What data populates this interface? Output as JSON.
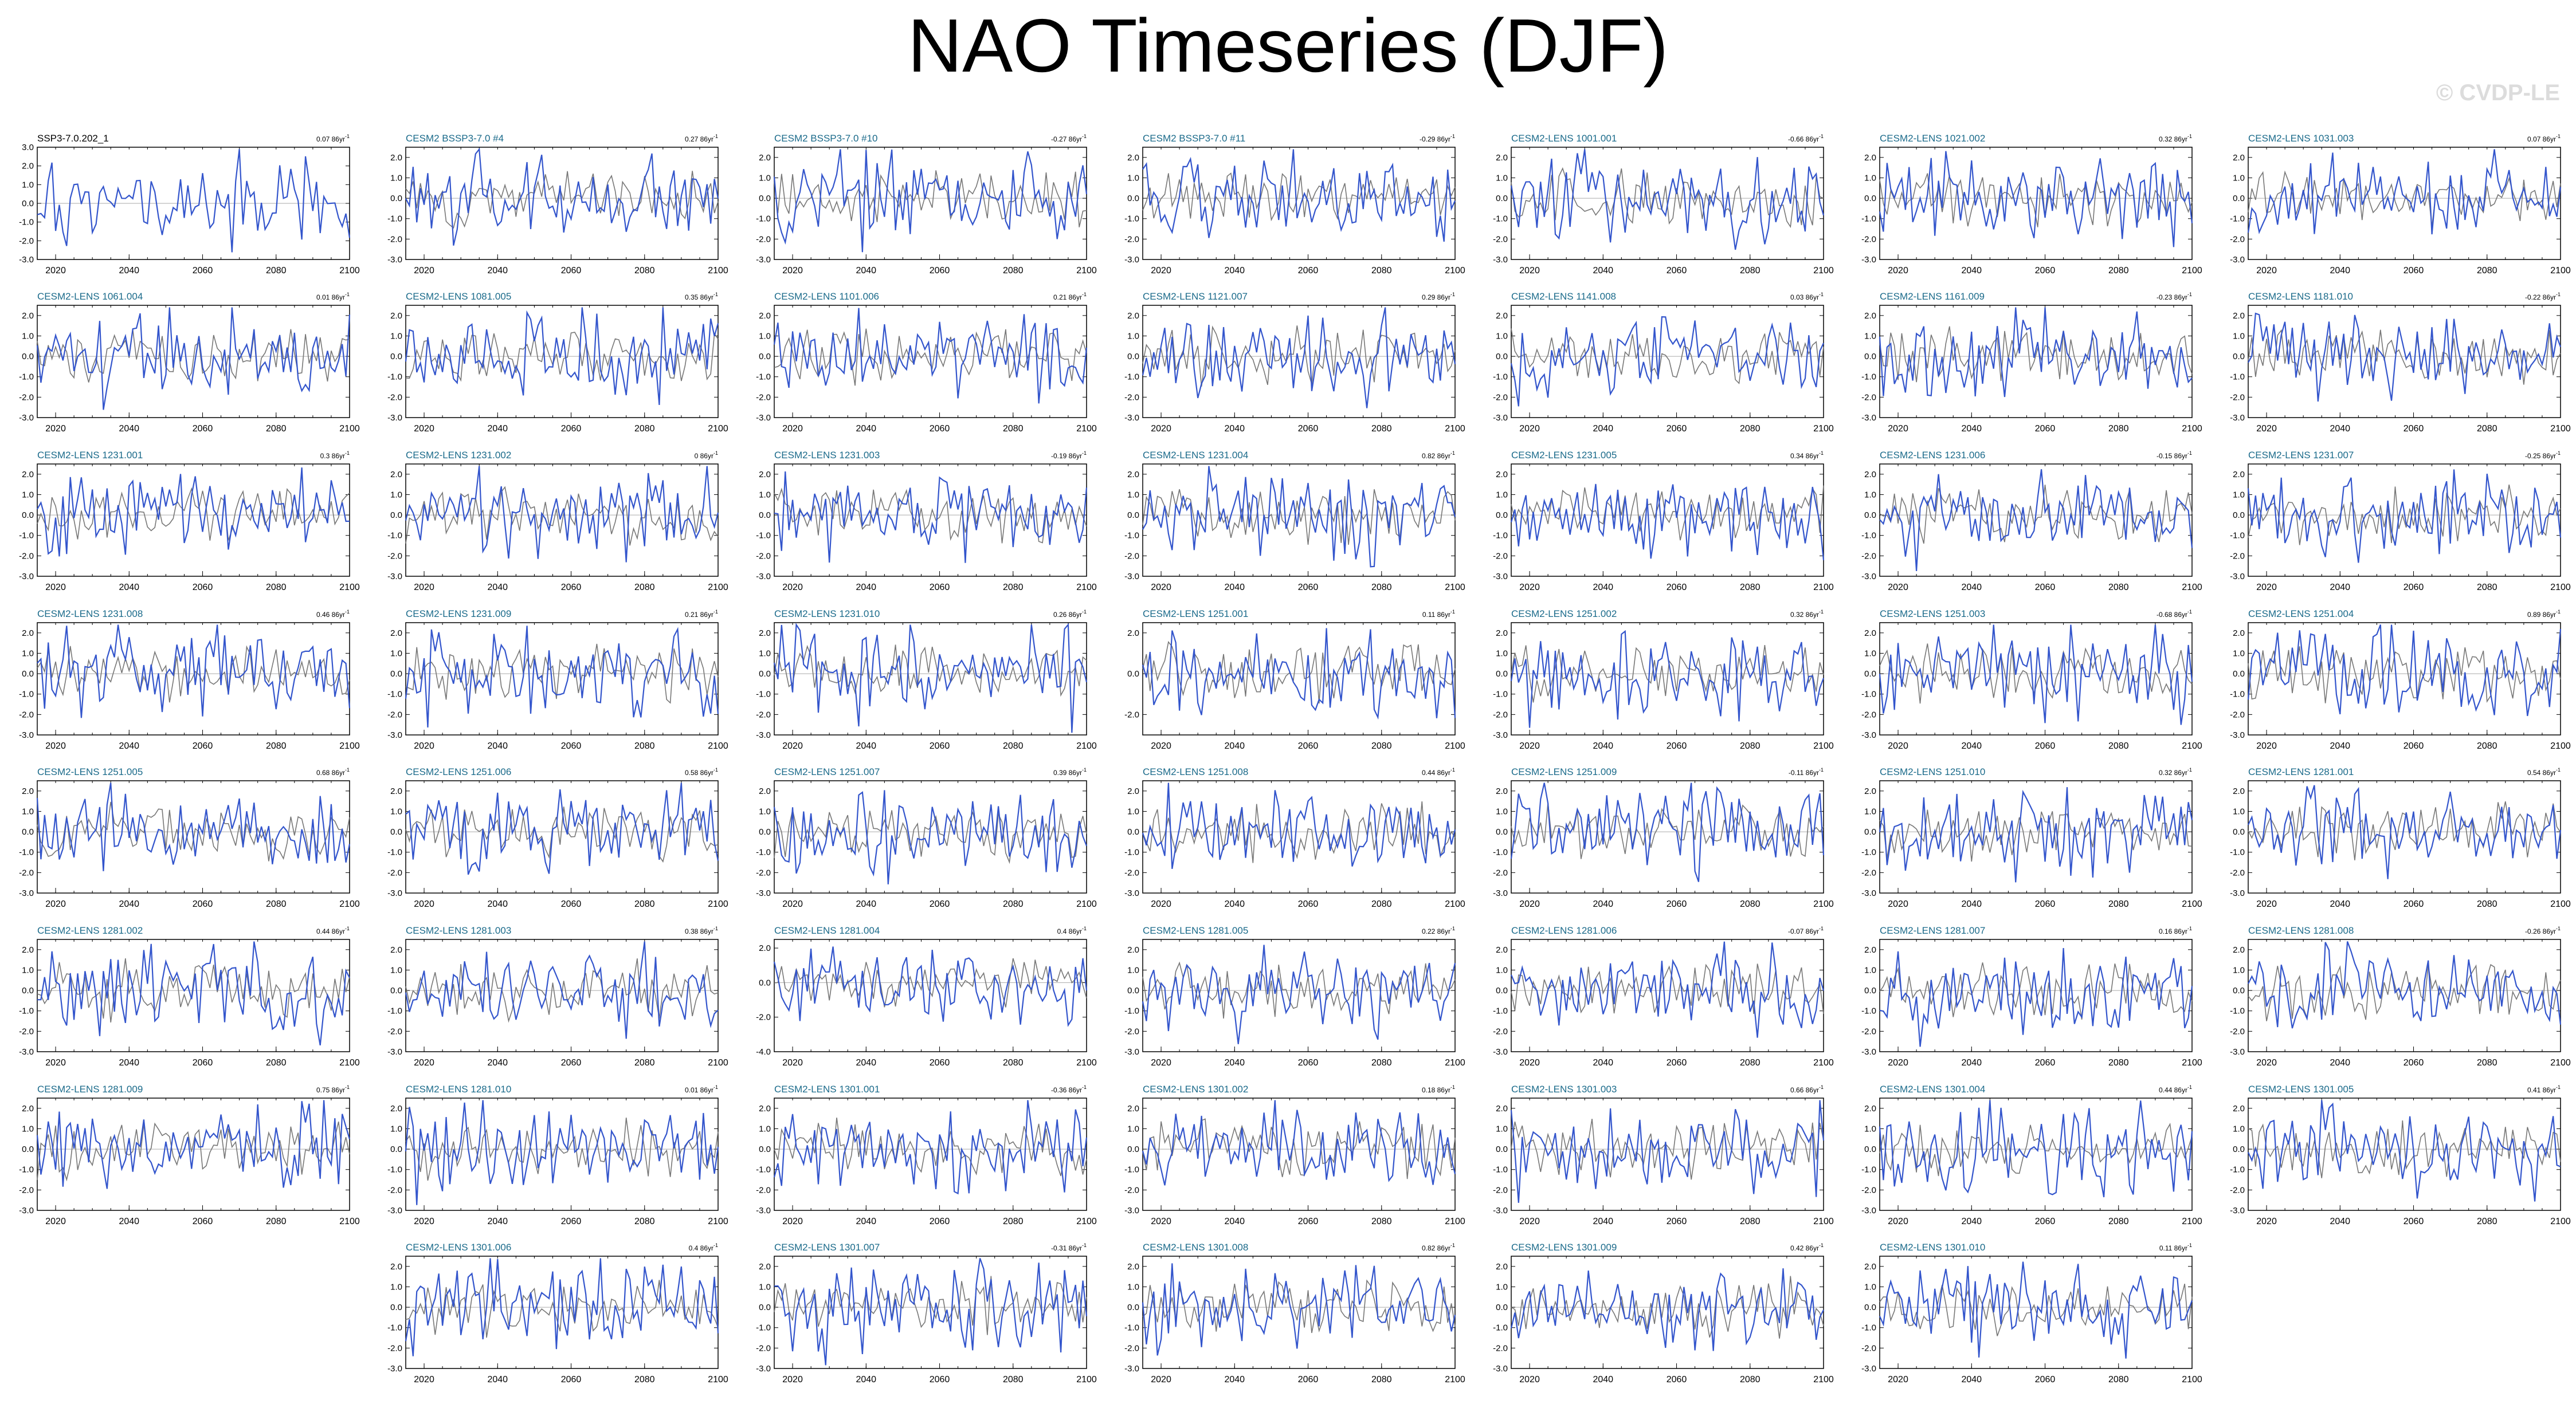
{
  "title": "NAO Timeseries (DJF)",
  "credit": "© CVDP-LE",
  "colors": {
    "ensemble": "#3355cc",
    "mean": "#777777",
    "zero": "#aaaaaa",
    "title_first": "#000000",
    "title_member": "#1a6a8a"
  },
  "xticks": [
    2020,
    2040,
    2060,
    2080,
    2100
  ],
  "chart_data": [
    {
      "type": "line",
      "name": "SSP3-7.0.202_1",
      "trend": "0.07 86yr",
      "yticks": [
        "3.0",
        "2.0",
        "1.0",
        "0.0",
        "-1.0",
        "-2.0",
        "-3.0"
      ],
      "ylim": [
        -3.0,
        3.0
      ],
      "x_range": [
        2015,
        2100
      ],
      "seed": 1
    },
    {
      "type": "line",
      "name": "CESM2 BSSP3-7.0 #4",
      "trend": "0.27 86yr",
      "yticks": [
        "2.0",
        "1.0",
        "0.0",
        "-1.0",
        "-2.0",
        "-3.0"
      ],
      "ylim": [
        -3.0,
        2.5
      ],
      "x_range": [
        2015,
        2100
      ],
      "seed": 2
    },
    {
      "type": "line",
      "name": "CESM2 BSSP3-7.0 #10",
      "trend": "-0.27 86yr",
      "yticks": [
        "2.0",
        "1.0",
        "0.0",
        "-1.0",
        "-2.0",
        "-3.0"
      ],
      "ylim": [
        -3.0,
        2.5
      ],
      "x_range": [
        2015,
        2100
      ],
      "seed": 3
    },
    {
      "type": "line",
      "name": "CESM2 BSSP3-7.0 #11",
      "trend": "-0.29 86yr",
      "yticks": [
        "2.0",
        "1.0",
        "0.0",
        "-1.0",
        "-2.0",
        "-3.0"
      ],
      "ylim": [
        -3.0,
        2.5
      ],
      "x_range": [
        2015,
        2100
      ],
      "seed": 4
    },
    {
      "type": "line",
      "name": "CESM2-LENS 1001.001",
      "trend": "-0.66 86yr",
      "yticks": [
        "2.0",
        "1.0",
        "0.0",
        "-1.0",
        "-2.0",
        "-3.0"
      ],
      "ylim": [
        -3.0,
        2.5
      ],
      "x_range": [
        2015,
        2100
      ],
      "seed": 5
    },
    {
      "type": "line",
      "name": "CESM2-LENS 1021.002",
      "trend": "0.32 86yr",
      "yticks": [
        "2.0",
        "1.0",
        "0.0",
        "-1.0",
        "-2.0",
        "-3.0"
      ],
      "ylim": [
        -3.0,
        2.5
      ],
      "x_range": [
        2015,
        2100
      ],
      "seed": 6
    },
    {
      "type": "line",
      "name": "CESM2-LENS 1031.003",
      "trend": "0.07 86yr",
      "yticks": [
        "2.0",
        "1.0",
        "0.0",
        "-1.0",
        "-2.0",
        "-3.0"
      ],
      "ylim": [
        -3.0,
        2.5
      ],
      "x_range": [
        2015,
        2100
      ],
      "seed": 7
    },
    {
      "type": "line",
      "name": "CESM2-LENS 1061.004",
      "trend": "0.01 86yr",
      "yticks": [
        "2.0",
        "1.0",
        "0.0",
        "-1.0",
        "-2.0",
        "-3.0"
      ],
      "ylim": [
        -3.0,
        2.5
      ],
      "x_range": [
        2015,
        2100
      ],
      "seed": 8
    },
    {
      "type": "line",
      "name": "CESM2-LENS 1081.005",
      "trend": "0.35 86yr",
      "yticks": [
        "2.0",
        "1.0",
        "0.0",
        "-1.0",
        "-2.0",
        "-3.0"
      ],
      "ylim": [
        -3.0,
        2.5
      ],
      "x_range": [
        2015,
        2100
      ],
      "seed": 9
    },
    {
      "type": "line",
      "name": "CESM2-LENS 1101.006",
      "trend": "0.21 86yr",
      "yticks": [
        "2.0",
        "1.0",
        "0.0",
        "-1.0",
        "-2.0",
        "-3.0"
      ],
      "ylim": [
        -3.0,
        2.5
      ],
      "x_range": [
        2015,
        2100
      ],
      "seed": 10
    },
    {
      "type": "line",
      "name": "CESM2-LENS 1121.007",
      "trend": "0.29 86yr",
      "yticks": [
        "2.0",
        "1.0",
        "0.0",
        "-1.0",
        "-2.0",
        "-3.0"
      ],
      "ylim": [
        -3.0,
        2.5
      ],
      "x_range": [
        2015,
        2100
      ],
      "seed": 11
    },
    {
      "type": "line",
      "name": "CESM2-LENS 1141.008",
      "trend": "0.03 86yr",
      "yticks": [
        "2.0",
        "1.0",
        "0.0",
        "-1.0",
        "-2.0",
        "-3.0"
      ],
      "ylim": [
        -3.0,
        2.5
      ],
      "x_range": [
        2015,
        2100
      ],
      "seed": 12
    },
    {
      "type": "line",
      "name": "CESM2-LENS 1161.009",
      "trend": "-0.23 86yr",
      "yticks": [
        "2.0",
        "1.0",
        "0.0",
        "-1.0",
        "-2.0",
        "-3.0"
      ],
      "ylim": [
        -3.0,
        2.5
      ],
      "x_range": [
        2015,
        2100
      ],
      "seed": 13
    },
    {
      "type": "line",
      "name": "CESM2-LENS 1181.010",
      "trend": "-0.22 86yr",
      "yticks": [
        "2.0",
        "1.0",
        "0.0",
        "-1.0",
        "-2.0",
        "-3.0"
      ],
      "ylim": [
        -3.0,
        2.5
      ],
      "x_range": [
        2015,
        2100
      ],
      "seed": 14
    },
    {
      "type": "line",
      "name": "CESM2-LENS 1231.001",
      "trend": "0.3 86yr",
      "yticks": [
        "2.0",
        "1.0",
        "0.0",
        "-1.0",
        "-2.0",
        "-3.0"
      ],
      "ylim": [
        -3.0,
        2.5
      ],
      "x_range": [
        2015,
        2100
      ],
      "seed": 15
    },
    {
      "type": "line",
      "name": "CESM2-LENS 1231.002",
      "trend": "0 86yr",
      "yticks": [
        "2.0",
        "1.0",
        "0.0",
        "-1.0",
        "-2.0",
        "-3.0"
      ],
      "ylim": [
        -3.0,
        2.5
      ],
      "x_range": [
        2015,
        2100
      ],
      "seed": 16
    },
    {
      "type": "line",
      "name": "CESM2-LENS 1231.003",
      "trend": "-0.19 86yr",
      "yticks": [
        "2.0",
        "1.0",
        "0.0",
        "-1.0",
        "-2.0",
        "-3.0"
      ],
      "ylim": [
        -3.0,
        2.5
      ],
      "x_range": [
        2015,
        2100
      ],
      "seed": 17
    },
    {
      "type": "line",
      "name": "CESM2-LENS 1231.004",
      "trend": "0.82 86yr",
      "yticks": [
        "2.0",
        "1.0",
        "0.0",
        "-1.0",
        "-2.0",
        "-3.0"
      ],
      "ylim": [
        -3.0,
        2.5
      ],
      "x_range": [
        2015,
        2100
      ],
      "seed": 18
    },
    {
      "type": "line",
      "name": "CESM2-LENS 1231.005",
      "trend": "0.34 86yr",
      "yticks": [
        "2.0",
        "1.0",
        "0.0",
        "-1.0",
        "-2.0",
        "-3.0"
      ],
      "ylim": [
        -3.0,
        2.5
      ],
      "x_range": [
        2015,
        2100
      ],
      "seed": 19
    },
    {
      "type": "line",
      "name": "CESM2-LENS 1231.006",
      "trend": "-0.15 86yr",
      "yticks": [
        "2.0",
        "1.0",
        "0.0",
        "-1.0",
        "-2.0",
        "-3.0"
      ],
      "ylim": [
        -3.0,
        2.5
      ],
      "x_range": [
        2015,
        2100
      ],
      "seed": 20
    },
    {
      "type": "line",
      "name": "CESM2-LENS 1231.007",
      "trend": "-0.25 86yr",
      "yticks": [
        "2.0",
        "1.0",
        "0.0",
        "-1.0",
        "-2.0",
        "-3.0"
      ],
      "ylim": [
        -3.0,
        2.5
      ],
      "x_range": [
        2015,
        2100
      ],
      "seed": 21
    },
    {
      "type": "line",
      "name": "CESM2-LENS 1231.008",
      "trend": "0.46 86yr",
      "yticks": [
        "2.0",
        "1.0",
        "0.0",
        "-1.0",
        "-2.0",
        "-3.0"
      ],
      "ylim": [
        -3.0,
        2.5
      ],
      "x_range": [
        2015,
        2100
      ],
      "seed": 22
    },
    {
      "type": "line",
      "name": "CESM2-LENS 1231.009",
      "trend": "0.21 86yr",
      "yticks": [
        "2.0",
        "1.0",
        "0.0",
        "-1.0",
        "-2.0",
        "-3.0"
      ],
      "ylim": [
        -3.0,
        2.5
      ],
      "x_range": [
        2015,
        2100
      ],
      "seed": 23
    },
    {
      "type": "line",
      "name": "CESM2-LENS 1231.010",
      "trend": "0.26 86yr",
      "yticks": [
        "2.0",
        "1.0",
        "0.0",
        "-1.0",
        "-2.0",
        "-3.0"
      ],
      "ylim": [
        -3.0,
        2.5
      ],
      "x_range": [
        2015,
        2100
      ],
      "seed": 24
    },
    {
      "type": "line",
      "name": "CESM2-LENS 1251.001",
      "trend": "0.11 86yr",
      "yticks": [
        "2.0",
        "0.0",
        "-2.0"
      ],
      "ylim": [
        -3.0,
        2.5
      ],
      "x_range": [
        2015,
        2100
      ],
      "seed": 25
    },
    {
      "type": "line",
      "name": "CESM2-LENS 1251.002",
      "trend": "0.32 86yr",
      "yticks": [
        "2.0",
        "1.0",
        "0.0",
        "-1.0",
        "-2.0",
        "-3.0"
      ],
      "ylim": [
        -3.0,
        2.5
      ],
      "x_range": [
        2015,
        2100
      ],
      "seed": 26
    },
    {
      "type": "line",
      "name": "CESM2-LENS 1251.003",
      "trend": "-0.68 86yr",
      "yticks": [
        "2.0",
        "1.0",
        "0.0",
        "-1.0",
        "-2.0",
        "-3.0"
      ],
      "ylim": [
        -3.0,
        2.5
      ],
      "x_range": [
        2015,
        2100
      ],
      "seed": 27
    },
    {
      "type": "line",
      "name": "CESM2-LENS 1251.004",
      "trend": "0.89 86yr",
      "yticks": [
        "2.0",
        "1.0",
        "0.0",
        "-1.0",
        "-2.0",
        "-3.0"
      ],
      "ylim": [
        -3.0,
        2.5
      ],
      "x_range": [
        2015,
        2100
      ],
      "seed": 28
    },
    {
      "type": "line",
      "name": "CESM2-LENS 1251.005",
      "trend": "0.68 86yr",
      "yticks": [
        "2.0",
        "1.0",
        "0.0",
        "-1.0",
        "-2.0",
        "-3.0"
      ],
      "ylim": [
        -3.0,
        2.5
      ],
      "x_range": [
        2015,
        2100
      ],
      "seed": 29
    },
    {
      "type": "line",
      "name": "CESM2-LENS 1251.006",
      "trend": "0.58 86yr",
      "yticks": [
        "2.0",
        "1.0",
        "0.0",
        "-1.0",
        "-2.0",
        "-3.0"
      ],
      "ylim": [
        -3.0,
        2.5
      ],
      "x_range": [
        2015,
        2100
      ],
      "seed": 30
    },
    {
      "type": "line",
      "name": "CESM2-LENS 1251.007",
      "trend": "0.39 86yr",
      "yticks": [
        "2.0",
        "1.0",
        "0.0",
        "-1.0",
        "-2.0",
        "-3.0"
      ],
      "ylim": [
        -3.0,
        2.5
      ],
      "x_range": [
        2015,
        2100
      ],
      "seed": 31
    },
    {
      "type": "line",
      "name": "CESM2-LENS 1251.008",
      "trend": "0.44 86yr",
      "yticks": [
        "2.0",
        "1.0",
        "0.0",
        "-1.0",
        "-2.0",
        "-3.0"
      ],
      "ylim": [
        -3.0,
        2.5
      ],
      "x_range": [
        2015,
        2100
      ],
      "seed": 32
    },
    {
      "type": "line",
      "name": "CESM2-LENS 1251.009",
      "trend": "-0.11 86yr",
      "yticks": [
        "2.0",
        "1.0",
        "0.0",
        "-1.0",
        "-2.0",
        "-3.0"
      ],
      "ylim": [
        -3.0,
        2.5
      ],
      "x_range": [
        2015,
        2100
      ],
      "seed": 33
    },
    {
      "type": "line",
      "name": "CESM2-LENS 1251.010",
      "trend": "0.32 86yr",
      "yticks": [
        "2.0",
        "1.0",
        "0.0",
        "-1.0",
        "-2.0",
        "-3.0"
      ],
      "ylim": [
        -3.0,
        2.5
      ],
      "x_range": [
        2015,
        2100
      ],
      "seed": 34
    },
    {
      "type": "line",
      "name": "CESM2-LENS 1281.001",
      "trend": "0.54 86yr",
      "yticks": [
        "2.0",
        "1.0",
        "0.0",
        "-1.0",
        "-2.0",
        "-3.0"
      ],
      "ylim": [
        -3.0,
        2.5
      ],
      "x_range": [
        2015,
        2100
      ],
      "seed": 35
    },
    {
      "type": "line",
      "name": "CESM2-LENS 1281.002",
      "trend": "0.44 86yr",
      "yticks": [
        "2.0",
        "1.0",
        "0.0",
        "-1.0",
        "-2.0",
        "-3.0"
      ],
      "ylim": [
        -3.0,
        2.5
      ],
      "x_range": [
        2015,
        2100
      ],
      "seed": 36
    },
    {
      "type": "line",
      "name": "CESM2-LENS 1281.003",
      "trend": "0.38 86yr",
      "yticks": [
        "2.0",
        "1.0",
        "0.0",
        "-1.0",
        "-2.0",
        "-3.0"
      ],
      "ylim": [
        -3.0,
        2.5
      ],
      "x_range": [
        2015,
        2100
      ],
      "seed": 37
    },
    {
      "type": "line",
      "name": "CESM2-LENS 1281.004",
      "trend": "0.4 86yr",
      "yticks": [
        "2.0",
        "0.0",
        "-2.0",
        "-4.0"
      ],
      "ylim": [
        -4.0,
        2.5
      ],
      "x_range": [
        2015,
        2100
      ],
      "seed": 38
    },
    {
      "type": "line",
      "name": "CESM2-LENS 1281.005",
      "trend": "0.22 86yr",
      "yticks": [
        "2.0",
        "1.0",
        "0.0",
        "-1.0",
        "-2.0",
        "-3.0"
      ],
      "ylim": [
        -3.0,
        2.5
      ],
      "x_range": [
        2015,
        2100
      ],
      "seed": 39
    },
    {
      "type": "line",
      "name": "CESM2-LENS 1281.006",
      "trend": "-0.07 86yr",
      "yticks": [
        "2.0",
        "1.0",
        "0.0",
        "-1.0",
        "-2.0",
        "-3.0"
      ],
      "ylim": [
        -3.0,
        2.5
      ],
      "x_range": [
        2015,
        2100
      ],
      "seed": 40
    },
    {
      "type": "line",
      "name": "CESM2-LENS 1281.007",
      "trend": "0.16 86yr",
      "yticks": [
        "2.0",
        "1.0",
        "0.0",
        "-1.0",
        "-2.0",
        "-3.0"
      ],
      "ylim": [
        -3.0,
        2.5
      ],
      "x_range": [
        2015,
        2100
      ],
      "seed": 41
    },
    {
      "type": "line",
      "name": "CESM2-LENS 1281.008",
      "trend": "-0.26 86yr",
      "yticks": [
        "2.0",
        "1.0",
        "0.0",
        "-1.0",
        "-2.0",
        "-3.0"
      ],
      "ylim": [
        -3.0,
        2.5
      ],
      "x_range": [
        2015,
        2100
      ],
      "seed": 42
    },
    {
      "type": "line",
      "name": "CESM2-LENS 1281.009",
      "trend": "0.75 86yr",
      "yticks": [
        "2.0",
        "1.0",
        "0.0",
        "-1.0",
        "-2.0",
        "-3.0"
      ],
      "ylim": [
        -3.0,
        2.5
      ],
      "x_range": [
        2015,
        2100
      ],
      "seed": 43
    },
    {
      "type": "line",
      "name": "CESM2-LENS 1281.010",
      "trend": "0.01 86yr",
      "yticks": [
        "2.0",
        "1.0",
        "0.0",
        "-1.0",
        "-2.0",
        "-3.0"
      ],
      "ylim": [
        -3.0,
        2.5
      ],
      "x_range": [
        2015,
        2100
      ],
      "seed": 44
    },
    {
      "type": "line",
      "name": "CESM2-LENS 1301.001",
      "trend": "-0.36 86yr",
      "yticks": [
        "2.0",
        "1.0",
        "0.0",
        "-1.0",
        "-2.0",
        "-3.0"
      ],
      "ylim": [
        -3.0,
        2.5
      ],
      "x_range": [
        2015,
        2100
      ],
      "seed": 45
    },
    {
      "type": "line",
      "name": "CESM2-LENS 1301.002",
      "trend": "0.18 86yr",
      "yticks": [
        "2.0",
        "1.0",
        "0.0",
        "-1.0",
        "-2.0",
        "-3.0"
      ],
      "ylim": [
        -3.0,
        2.5
      ],
      "x_range": [
        2015,
        2100
      ],
      "seed": 46
    },
    {
      "type": "line",
      "name": "CESM2-LENS 1301.003",
      "trend": "0.66 86yr",
      "yticks": [
        "2.0",
        "1.0",
        "0.0",
        "-1.0",
        "-2.0",
        "-3.0"
      ],
      "ylim": [
        -3.0,
        2.5
      ],
      "x_range": [
        2015,
        2100
      ],
      "seed": 47
    },
    {
      "type": "line",
      "name": "CESM2-LENS 1301.004",
      "trend": "0.44 86yr",
      "yticks": [
        "2.0",
        "1.0",
        "0.0",
        "-1.0",
        "-2.0",
        "-3.0"
      ],
      "ylim": [
        -3.0,
        2.5
      ],
      "x_range": [
        2015,
        2100
      ],
      "seed": 48
    },
    {
      "type": "line",
      "name": "CESM2-LENS 1301.005",
      "trend": "0.41 86yr",
      "yticks": [
        "2.0",
        "1.0",
        "0.0",
        "-1.0",
        "-2.0",
        "-3.0"
      ],
      "ylim": [
        -3.0,
        2.5
      ],
      "x_range": [
        2015,
        2100
      ],
      "seed": 49
    },
    {
      "type": "line",
      "name": "CESM2-LENS 1301.006",
      "trend": "0.4 86yr",
      "yticks": [
        "2.0",
        "1.0",
        "0.0",
        "-1.0",
        "-2.0",
        "-3.0"
      ],
      "ylim": [
        -3.0,
        2.5
      ],
      "x_range": [
        2015,
        2100
      ],
      "seed": 50
    },
    {
      "type": "line",
      "name": "CESM2-LENS 1301.007",
      "trend": "-0.31 86yr",
      "yticks": [
        "2.0",
        "1.0",
        "0.0",
        "-1.0",
        "-2.0",
        "-3.0"
      ],
      "ylim": [
        -3.0,
        2.5
      ],
      "x_range": [
        2015,
        2100
      ],
      "seed": 51
    },
    {
      "type": "line",
      "name": "CESM2-LENS 1301.008",
      "trend": "0.82 86yr",
      "yticks": [
        "2.0",
        "1.0",
        "0.0",
        "-1.0",
        "-2.0",
        "-3.0"
      ],
      "ylim": [
        -3.0,
        2.5
      ],
      "x_range": [
        2015,
        2100
      ],
      "seed": 52
    },
    {
      "type": "line",
      "name": "CESM2-LENS 1301.009",
      "trend": "0.42 86yr",
      "yticks": [
        "2.0",
        "1.0",
        "0.0",
        "-1.0",
        "-2.0",
        "-3.0"
      ],
      "ylim": [
        -3.0,
        2.5
      ],
      "x_range": [
        2015,
        2100
      ],
      "seed": 53
    },
    {
      "type": "line",
      "name": "CESM2-LENS 1301.010",
      "trend": "0.11 86yr",
      "yticks": [
        "2.0",
        "1.0",
        "0.0",
        "-1.0",
        "-2.0",
        "-3.0"
      ],
      "ylim": [
        -3.0,
        2.5
      ],
      "x_range": [
        2015,
        2100
      ],
      "seed": 54
    }
  ]
}
